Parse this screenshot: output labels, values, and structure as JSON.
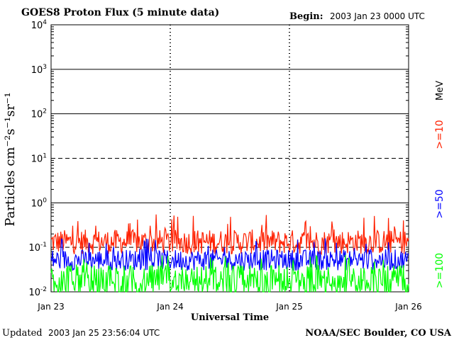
{
  "header": {
    "title": "GOES8 Proton Flux (5 minute data)",
    "begin_label": "Begin:",
    "begin_value": "2003 Jan 23 0000 UTC"
  },
  "footer": {
    "updated_label": "Updated",
    "updated_value": "2003 Jan 25 23:56:04 UTC",
    "credit": "NOAA/SEC Boulder, CO USA"
  },
  "chart_data": {
    "type": "line",
    "title": "GOES8 Proton Flux (5 minute data)",
    "xlabel": "Universal Time",
    "ylabel": "Particles cm⁻²s⁻¹sr⁻¹",
    "yscale": "log",
    "ylim": [
      0.01,
      10000
    ],
    "y_ticks": [
      {
        "value": 0.01,
        "base": "10",
        "exp": "-2"
      },
      {
        "value": 0.1,
        "base": "10",
        "exp": "-1"
      },
      {
        "value": 1,
        "base": "10",
        "exp": "0"
      },
      {
        "value": 10,
        "base": "10",
        "exp": "1"
      },
      {
        "value": 100,
        "base": "10",
        "exp": "2"
      },
      {
        "value": 1000,
        "base": "10",
        "exp": "3"
      },
      {
        "value": 10000,
        "base": "10",
        "exp": "4"
      }
    ],
    "x_ticks": [
      "Jan 23",
      "Jan 24",
      "Jan 25",
      "Jan 26"
    ],
    "x_range_days": [
      0,
      3
    ],
    "unit_label": "MeV",
    "grid": true,
    "legend_placement": "right",
    "series": [
      {
        "name": ">=10",
        "color": "#ff2000",
        "typical_min": 0.07,
        "typical_max": 0.25,
        "peak_max": 0.55
      },
      {
        "name": ">=50",
        "color": "#0000ff",
        "typical_min": 0.03,
        "typical_max": 0.09,
        "peak_max": 0.16
      },
      {
        "name": ">=100",
        "color": "#00ff00",
        "typical_min": 0.01,
        "typical_max": 0.04,
        "peak_max": 0.07
      }
    ]
  }
}
